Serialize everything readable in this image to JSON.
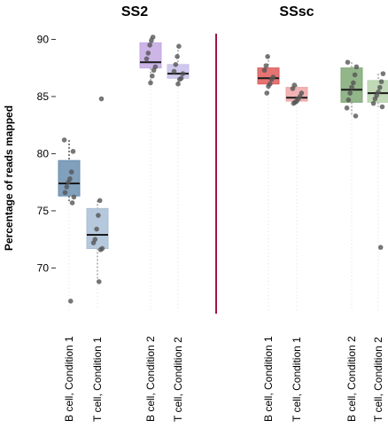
{
  "chart_data": {
    "type": "box",
    "ylabel": "Percentage of reads mapped",
    "ylim": [
      66,
      90.5
    ],
    "yticks": [
      70,
      75,
      80,
      85,
      90
    ],
    "divider_color": "#a0153e",
    "panels": [
      {
        "title": "SS2",
        "categories": [
          "B cell, Condition 1",
          "T cell, Condition 1",
          "B cell, Condition 2",
          "T cell, Condition 2"
        ],
        "boxes": [
          {
            "category": "B cell, Condition 1",
            "color": "#6a8fb0",
            "whisker_color": "#000000",
            "min": 75.7,
            "q1": 76.3,
            "median": 77.4,
            "q3": 79.4,
            "max": 81.2,
            "points": [
              81.2,
              80.2,
              78.4,
              77.8,
              77.5,
              77.1,
              76.6,
              76.2,
              75.7,
              67.1
            ]
          },
          {
            "category": "T cell, Condition 1",
            "color": "#a9bfd6",
            "whisker_color": "#777777",
            "min": 68.8,
            "q1": 71.7,
            "median": 72.9,
            "q3": 75.2,
            "max": 75.9,
            "points": [
              84.8,
              75.9,
              74.6,
              73.4,
              72.5,
              72.2,
              71.7,
              71.6,
              68.8
            ]
          },
          {
            "category": "B cell, Condition 2",
            "color": "#c4a8e4",
            "whisker_color": "#777777",
            "min": 86.2,
            "q1": 87.5,
            "median": 88.0,
            "q3": 89.7,
            "max": 90.2,
            "points": [
              90.2,
              89.9,
              89.5,
              88.8,
              88.3,
              87.6,
              87.3,
              86.8,
              86.2
            ]
          },
          {
            "category": "T cell, Condition 2",
            "color": "#c8c0ea",
            "whisker_color": "#777777",
            "min": 86.1,
            "q1": 86.6,
            "median": 87.0,
            "q3": 87.8,
            "max": 89.4,
            "points": [
              89.4,
              88.5,
              87.8,
              87.2,
              87.0,
              86.6,
              86.5,
              86.1
            ]
          }
        ]
      },
      {
        "title": "SSsc",
        "categories": [
          "B cell, Condition 1",
          "T cell, Condition 1",
          "B cell, Condition 2",
          "T cell, Condition 2"
        ],
        "boxes": [
          {
            "category": "B cell, Condition 1",
            "color": "#e05a5a",
            "whisker_color": "#777777",
            "min": 85.3,
            "q1": 86.1,
            "median": 86.6,
            "q3": 87.5,
            "max": 88.5,
            "points": [
              88.5,
              87.7,
              87.3,
              86.7,
              86.5,
              86.1,
              85.9,
              85.3
            ]
          },
          {
            "category": "T cell, Condition 1",
            "color": "#eea6a6",
            "whisker_color": "#777777",
            "min": 84.4,
            "q1": 84.6,
            "median": 84.9,
            "q3": 85.8,
            "max": 86.0,
            "points": [
              86.0,
              85.7,
              85.3,
              85.0,
              84.8,
              84.6,
              84.5,
              84.4
            ]
          },
          {
            "category": "B cell, Condition 2",
            "color": "#7fa874",
            "whisker_color": "#777777",
            "min": 83.3,
            "q1": 84.5,
            "median": 85.6,
            "q3": 87.5,
            "max": 88.0,
            "points": [
              88.0,
              87.6,
              86.9,
              86.2,
              85.8,
              85.3,
              84.7,
              84.0,
              83.3
            ]
          },
          {
            "category": "T cell, Condition 2",
            "color": "#b6d2ac",
            "whisker_color": "#777777",
            "min": 84.1,
            "q1": 84.5,
            "median": 85.3,
            "q3": 86.4,
            "max": 87.0,
            "points": [
              87.0,
              86.3,
              85.8,
              85.4,
              85.1,
              84.8,
              84.4,
              84.1,
              71.8
            ]
          }
        ]
      }
    ]
  }
}
